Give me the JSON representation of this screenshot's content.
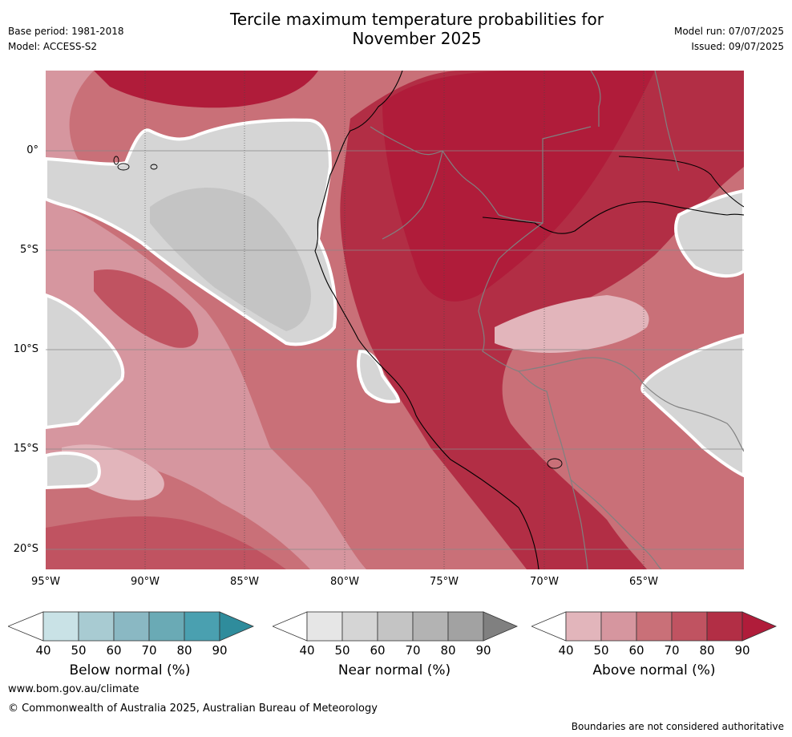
{
  "header": {
    "title_line1": "Tercile maximum temperature probabilities for",
    "title_line2": "November 2025",
    "base_period": "Base period: 1981-2018",
    "model": "Model: ACCESS-S2",
    "model_run": "Model run: 07/07/2025",
    "issued": "Issued: 09/07/2025"
  },
  "map": {
    "lat_labels": [
      "0°",
      "5°S",
      "10°S",
      "15°S",
      "20°S"
    ],
    "lon_labels": [
      "95°W",
      "90°W",
      "85°W",
      "80°W",
      "75°W",
      "70°W",
      "65°W"
    ],
    "extent": {
      "lon_min": -95,
      "lon_max": -60,
      "lat_min": -21,
      "lat_max": 4
    }
  },
  "legend": {
    "ticks": [
      "40",
      "50",
      "60",
      "70",
      "80",
      "90"
    ],
    "below": {
      "title": "Below normal (%)",
      "colors": [
        "#ffffff",
        "#c9e2e6",
        "#a8cbd2",
        "#8ab8c3",
        "#6aaab5",
        "#4aa0b0",
        "#2f8c9c"
      ]
    },
    "near": {
      "title": "Near normal (%)",
      "colors": [
        "#ffffff",
        "#e6e6e6",
        "#d5d5d5",
        "#c4c4c4",
        "#b3b3b3",
        "#a2a2a2",
        "#808080"
      ]
    },
    "above": {
      "title": "Above normal (%)",
      "colors": [
        "#ffffff",
        "#e2b5bb",
        "#d6969f",
        "#c97078",
        "#c05361",
        "#b22e45",
        "#b01c3a"
      ]
    }
  },
  "footer": {
    "url": "www.bom.gov.au/climate",
    "copyright": "© Commonwealth of Australia 2025, Australian Bureau of Meteorology",
    "disclaimer": "Boundaries are not considered authoritative"
  }
}
